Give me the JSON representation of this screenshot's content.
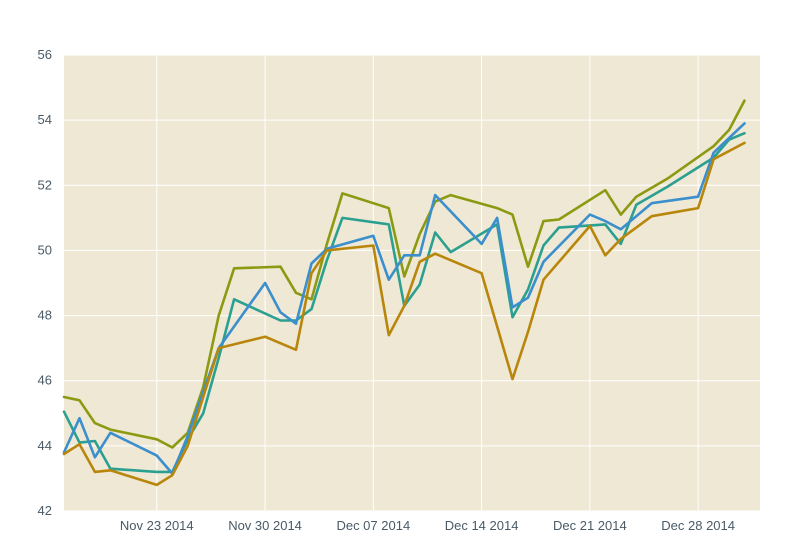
{
  "chart_data": {
    "type": "line",
    "title": "",
    "xlabel": "",
    "ylabel": "",
    "ylim": [
      42,
      56
    ],
    "yticks": [
      42,
      44,
      46,
      48,
      50,
      52,
      54,
      56
    ],
    "xlim": [
      "2014-11-17",
      "2015-01-01"
    ],
    "xticks": [
      {
        "date": "2014-11-23",
        "label": "Nov 23 2014"
      },
      {
        "date": "2014-11-30",
        "label": "Nov 30 2014"
      },
      {
        "date": "2014-12-07",
        "label": "Dec 07 2014"
      },
      {
        "date": "2014-12-14",
        "label": "Dec 14 2014"
      },
      {
        "date": "2014-12-21",
        "label": "Dec 21 2014"
      },
      {
        "date": "2014-12-28",
        "label": "Dec 28 2014"
      }
    ],
    "grid": true,
    "background": "#efe8d5",
    "series": [
      {
        "color": "#8c9a12",
        "points": [
          [
            "2014-11-17",
            45.5
          ],
          [
            "2014-11-18",
            45.4
          ],
          [
            "2014-11-19",
            44.7
          ],
          [
            "2014-11-20",
            44.5
          ],
          [
            "2014-11-23",
            44.2
          ],
          [
            "2014-11-24",
            43.95
          ],
          [
            "2014-11-25",
            44.4
          ],
          [
            "2014-11-26",
            45.8
          ],
          [
            "2014-11-27",
            48.0
          ],
          [
            "2014-11-28",
            49.45
          ],
          [
            "2014-12-01",
            49.5
          ],
          [
            "2014-12-02",
            48.7
          ],
          [
            "2014-12-03",
            48.5
          ],
          [
            "2014-12-04",
            50.2
          ],
          [
            "2014-12-05",
            51.75
          ],
          [
            "2014-12-08",
            51.3
          ],
          [
            "2014-12-09",
            49.2
          ],
          [
            "2014-12-10",
            50.5
          ],
          [
            "2014-12-11",
            51.5
          ],
          [
            "2014-12-12",
            51.7
          ],
          [
            "2014-12-15",
            51.3
          ],
          [
            "2014-12-16",
            51.1
          ],
          [
            "2014-12-17",
            49.5
          ],
          [
            "2014-12-18",
            50.9
          ],
          [
            "2014-12-19",
            50.95
          ],
          [
            "2014-12-22",
            51.85
          ],
          [
            "2014-12-23",
            51.1
          ],
          [
            "2014-12-24",
            51.65
          ],
          [
            "2014-12-26",
            52.2
          ],
          [
            "2014-12-29",
            53.2
          ],
          [
            "2014-12-30",
            53.7
          ],
          [
            "2014-12-31",
            54.6
          ]
        ]
      },
      {
        "color": "#2ba090",
        "points": [
          [
            "2014-11-17",
            45.05
          ],
          [
            "2014-11-18",
            44.1
          ],
          [
            "2014-11-19",
            44.15
          ],
          [
            "2014-11-20",
            43.3
          ],
          [
            "2014-11-23",
            43.2
          ],
          [
            "2014-11-24",
            43.2
          ],
          [
            "2014-11-25",
            44.2
          ],
          [
            "2014-11-26",
            45.0
          ],
          [
            "2014-11-27",
            46.7
          ],
          [
            "2014-11-28",
            48.5
          ],
          [
            "2014-12-01",
            47.85
          ],
          [
            "2014-12-02",
            47.85
          ],
          [
            "2014-12-03",
            48.2
          ],
          [
            "2014-12-04",
            49.7
          ],
          [
            "2014-12-05",
            51.0
          ],
          [
            "2014-12-08",
            50.8
          ],
          [
            "2014-12-09",
            48.3
          ],
          [
            "2014-12-10",
            48.95
          ],
          [
            "2014-12-11",
            50.55
          ],
          [
            "2014-12-12",
            49.95
          ],
          [
            "2014-12-15",
            50.8
          ],
          [
            "2014-12-16",
            47.95
          ],
          [
            "2014-12-17",
            48.8
          ],
          [
            "2014-12-18",
            50.15
          ],
          [
            "2014-12-19",
            50.7
          ],
          [
            "2014-12-22",
            50.8
          ],
          [
            "2014-12-23",
            50.2
          ],
          [
            "2014-12-24",
            51.4
          ],
          [
            "2014-12-26",
            51.95
          ],
          [
            "2014-12-29",
            52.85
          ],
          [
            "2014-12-30",
            53.4
          ],
          [
            "2014-12-31",
            53.6
          ]
        ]
      },
      {
        "color": "#3a8fcc",
        "points": [
          [
            "2014-11-17",
            43.8
          ],
          [
            "2014-11-18",
            44.85
          ],
          [
            "2014-11-19",
            43.65
          ],
          [
            "2014-11-20",
            44.4
          ],
          [
            "2014-11-23",
            43.7
          ],
          [
            "2014-11-24",
            43.15
          ],
          [
            "2014-11-25",
            44.3
          ],
          [
            "2014-11-27",
            47.0
          ],
          [
            "2014-11-30",
            49.0
          ],
          [
            "2014-12-01",
            48.1
          ],
          [
            "2014-12-02",
            47.75
          ],
          [
            "2014-12-03",
            49.6
          ],
          [
            "2014-12-04",
            50.05
          ],
          [
            "2014-12-07",
            50.45
          ],
          [
            "2014-12-08",
            49.1
          ],
          [
            "2014-12-09",
            49.85
          ],
          [
            "2014-12-10",
            49.85
          ],
          [
            "2014-12-11",
            51.7
          ],
          [
            "2014-12-14",
            50.2
          ],
          [
            "2014-12-15",
            51.0
          ],
          [
            "2014-12-16",
            48.25
          ],
          [
            "2014-12-17",
            48.55
          ],
          [
            "2014-12-18",
            49.65
          ],
          [
            "2014-12-21",
            51.1
          ],
          [
            "2014-12-22",
            50.9
          ],
          [
            "2014-12-23",
            50.65
          ],
          [
            "2014-12-25",
            51.45
          ],
          [
            "2014-12-28",
            51.65
          ],
          [
            "2014-12-29",
            53.0
          ],
          [
            "2014-12-31",
            53.9
          ]
        ]
      },
      {
        "color": "#b8860b",
        "points": [
          [
            "2014-11-17",
            43.75
          ],
          [
            "2014-11-18",
            44.05
          ],
          [
            "2014-11-19",
            43.2
          ],
          [
            "2014-11-20",
            43.25
          ],
          [
            "2014-11-23",
            42.8
          ],
          [
            "2014-11-24",
            43.1
          ],
          [
            "2014-11-25",
            44.0
          ],
          [
            "2014-11-27",
            47.0
          ],
          [
            "2014-11-30",
            47.35
          ],
          [
            "2014-12-02",
            46.95
          ],
          [
            "2014-12-03",
            49.3
          ],
          [
            "2014-12-04",
            50.0
          ],
          [
            "2014-12-07",
            50.15
          ],
          [
            "2014-12-08",
            47.4
          ],
          [
            "2014-12-09",
            48.3
          ],
          [
            "2014-12-10",
            49.65
          ],
          [
            "2014-12-11",
            49.9
          ],
          [
            "2014-12-14",
            49.3
          ],
          [
            "2014-12-16",
            46.05
          ],
          [
            "2014-12-17",
            47.5
          ],
          [
            "2014-12-18",
            49.1
          ],
          [
            "2014-12-21",
            50.75
          ],
          [
            "2014-12-22",
            49.85
          ],
          [
            "2014-12-23",
            50.35
          ],
          [
            "2014-12-25",
            51.05
          ],
          [
            "2014-12-28",
            51.3
          ],
          [
            "2014-12-29",
            52.8
          ],
          [
            "2014-12-31",
            53.3
          ]
        ]
      }
    ]
  }
}
